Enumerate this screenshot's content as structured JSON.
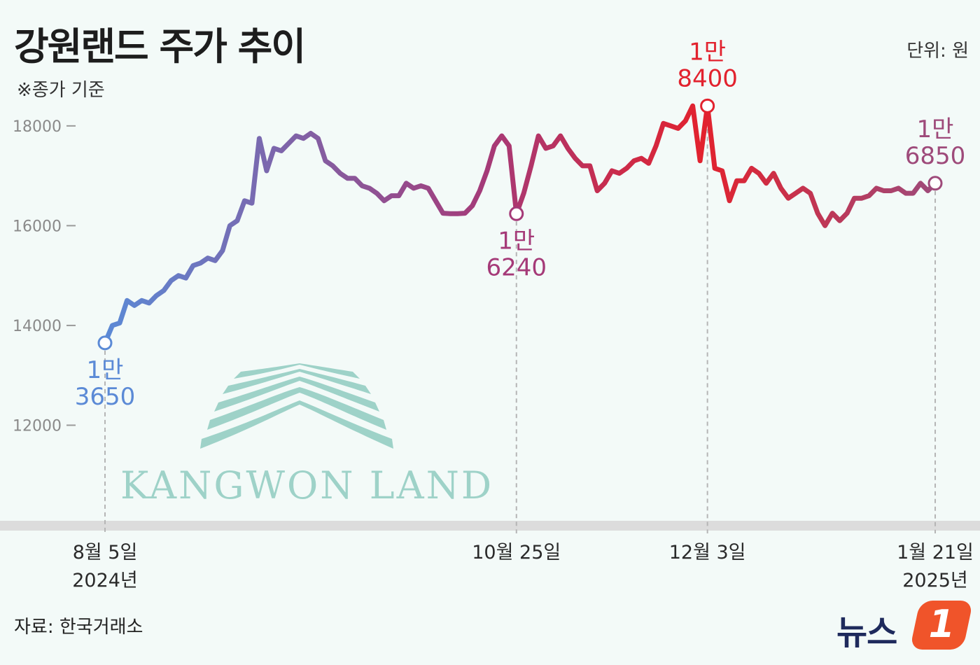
{
  "header": {
    "title": "강원랜드 주가 추이",
    "unit": "단위: 원",
    "note": "※종가 기준"
  },
  "footer": {
    "source": "자료: 한국거래소",
    "brand_text": "뉴스",
    "brand_num": "1"
  },
  "logo": {
    "text": "KANGWON LAND",
    "color": "#9ed2c8"
  },
  "colors": {
    "start": "#5b8ad6",
    "mid": "#a53a78",
    "end": "#e2222e",
    "late": "#9e4a7a",
    "axis": "#d6d6d6",
    "guide": "#b5b5b5"
  },
  "chart_data": {
    "type": "line",
    "title": "강원랜드 주가 추이",
    "ylabel": "",
    "xlabel": "",
    "ylim": [
      10000,
      19850
    ],
    "yticks": [
      "18000",
      "16000",
      "14000",
      "12000"
    ],
    "grid": false,
    "x_labels": [
      {
        "index": 0,
        "lines": [
          "8월 5일",
          "2024년"
        ]
      },
      {
        "index": 56,
        "lines": [
          "10월 25일"
        ]
      },
      {
        "index": 82,
        "lines": [
          "12월 3일"
        ]
      },
      {
        "index": 113,
        "lines": [
          "1월 21일",
          "2025년"
        ]
      }
    ],
    "annotations": [
      {
        "index": 0,
        "lines": [
          "1만",
          "3650"
        ],
        "position": "below",
        "color": "#5b8ad6"
      },
      {
        "index": 56,
        "lines": [
          "1만",
          "6240"
        ],
        "position": "below",
        "color": "#a53a78"
      },
      {
        "index": 82,
        "lines": [
          "1만",
          "8400"
        ],
        "position": "above",
        "color": "#e2222e"
      },
      {
        "index": 113,
        "lines": [
          "1만",
          "6850"
        ],
        "position": "above",
        "color": "#9e4a7a"
      }
    ],
    "series": [
      {
        "values": [
          13650,
          14000,
          14050,
          14500,
          14400,
          14500,
          14450,
          14600,
          14700,
          14900,
          15000,
          14950,
          15200,
          15250,
          15350,
          15300,
          15500,
          16000,
          16100,
          16500,
          16450,
          17750,
          17100,
          17550,
          17500,
          17650,
          17800,
          17750,
          17850,
          17750,
          17300,
          17200,
          17050,
          16950,
          16950,
          16800,
          16750,
          16650,
          16500,
          16600,
          16600,
          16850,
          16750,
          16800,
          16750,
          16500,
          16250,
          16240,
          16240,
          16250,
          16400,
          16700,
          17100,
          17600,
          17800,
          17600,
          16240,
          16650,
          17200,
          17800,
          17550,
          17600,
          17800,
          17550,
          17350,
          17200,
          17200,
          16700,
          16850,
          17100,
          17050,
          17150,
          17300,
          17350,
          17250,
          17600,
          18050,
          18000,
          17950,
          18100,
          18400,
          17300,
          18400,
          17150,
          17100,
          16500,
          16900,
          16900,
          17150,
          17050,
          16850,
          17050,
          16750,
          16550,
          16650,
          16750,
          16650,
          16250,
          16000,
          16250,
          16100,
          16250,
          16550,
          16550,
          16600,
          16750,
          16700,
          16700,
          16750,
          16650,
          16650,
          16850,
          16700,
          16850
        ]
      }
    ]
  }
}
